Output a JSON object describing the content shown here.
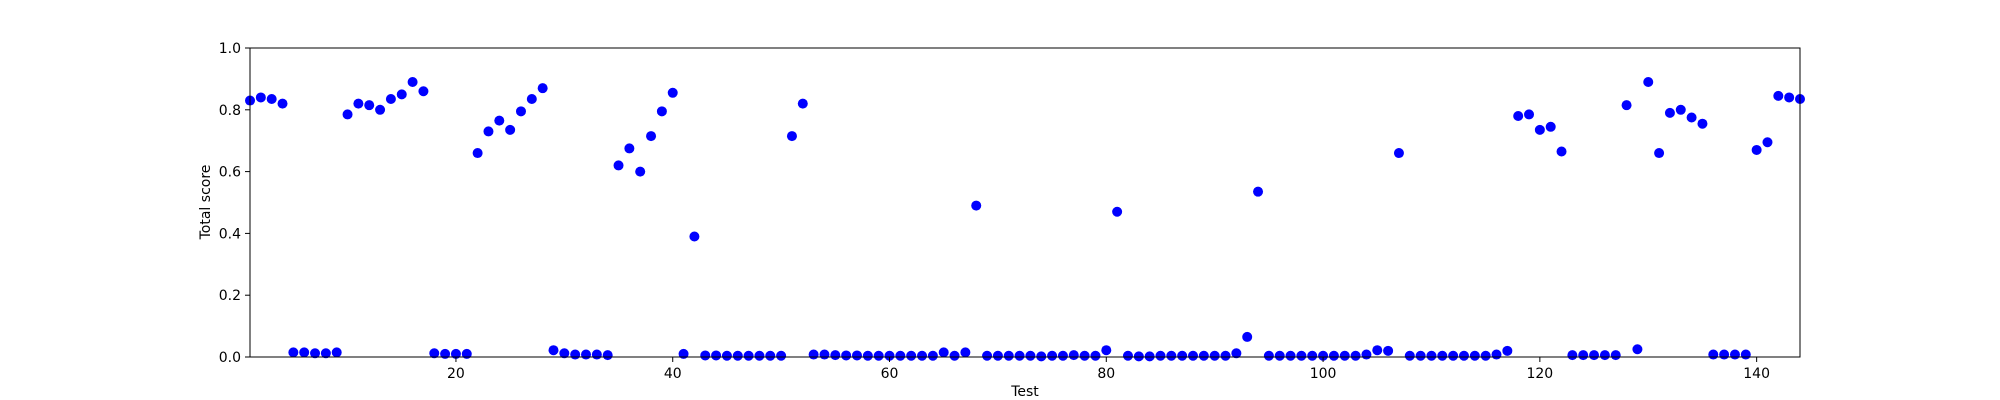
{
  "chart_data": {
    "type": "scatter",
    "title": "",
    "xlabel": "Test",
    "ylabel": "Total score",
    "xlim": [
      1,
      144
    ],
    "ylim": [
      0.0,
      1.0
    ],
    "x_ticks": [
      20,
      40,
      60,
      80,
      100,
      120,
      140
    ],
    "y_ticks": [
      0.0,
      0.2,
      0.4,
      0.6,
      0.8,
      1.0
    ],
    "x_tick_labels": [
      "20",
      "40",
      "60",
      "80",
      "100",
      "120",
      "140"
    ],
    "y_tick_labels": [
      "0.0",
      "0.2",
      "0.4",
      "0.6",
      "0.8",
      "1.0"
    ],
    "grid": false,
    "marker_color": "#0000ff",
    "series": [
      {
        "x": [
          1,
          2,
          3,
          4,
          5,
          6,
          7,
          8,
          9,
          10,
          11,
          12,
          13,
          14,
          15,
          16,
          17,
          18,
          19,
          20,
          21,
          22,
          23,
          24,
          25,
          26,
          27,
          28,
          29,
          30,
          31,
          32,
          33,
          34,
          35,
          36,
          37,
          38,
          39,
          40,
          41,
          42,
          43,
          44,
          45,
          46,
          47,
          48,
          49,
          50,
          51,
          52,
          53,
          54,
          55,
          56,
          57,
          58,
          59,
          60,
          61,
          62,
          63,
          64,
          65,
          66,
          67,
          68,
          69,
          70,
          71,
          72,
          73,
          74,
          75,
          76,
          77,
          78,
          79,
          80,
          81,
          82,
          83,
          84,
          85,
          86,
          87,
          88,
          89,
          90,
          91,
          92,
          93,
          94,
          95,
          96,
          97,
          98,
          99,
          100,
          101,
          102,
          103,
          104,
          105,
          106,
          107,
          108,
          109,
          110,
          111,
          112,
          113,
          114,
          115,
          116,
          117,
          118,
          119,
          120,
          121,
          122,
          123,
          124,
          125,
          126,
          127,
          128,
          129,
          130,
          131,
          132,
          133,
          134,
          135,
          136,
          137,
          138,
          139,
          140,
          141,
          142,
          143,
          144
        ],
        "y": [
          0.83,
          0.84,
          0.835,
          0.82,
          0.015,
          0.015,
          0.012,
          0.012,
          0.015,
          0.785,
          0.82,
          0.815,
          0.8,
          0.835,
          0.85,
          0.89,
          0.86,
          0.012,
          0.01,
          0.01,
          0.01,
          0.66,
          0.73,
          0.765,
          0.735,
          0.795,
          0.835,
          0.87,
          0.022,
          0.012,
          0.008,
          0.008,
          0.008,
          0.006,
          0.62,
          0.675,
          0.6,
          0.715,
          0.795,
          0.855,
          0.01,
          0.39,
          0.005,
          0.005,
          0.004,
          0.004,
          0.004,
          0.004,
          0.004,
          0.004,
          0.715,
          0.82,
          0.008,
          0.008,
          0.006,
          0.005,
          0.005,
          0.004,
          0.004,
          0.004,
          0.004,
          0.004,
          0.004,
          0.004,
          0.015,
          0.004,
          0.015,
          0.49,
          0.004,
          0.004,
          0.004,
          0.004,
          0.004,
          0.002,
          0.004,
          0.004,
          0.006,
          0.004,
          0.004,
          0.022,
          0.47,
          0.004,
          0.002,
          0.002,
          0.004,
          0.004,
          0.004,
          0.004,
          0.004,
          0.004,
          0.004,
          0.012,
          0.065,
          0.535,
          0.004,
          0.004,
          0.004,
          0.004,
          0.004,
          0.004,
          0.004,
          0.004,
          0.004,
          0.008,
          0.022,
          0.02,
          0.66,
          0.004,
          0.004,
          0.004,
          0.004,
          0.004,
          0.004,
          0.004,
          0.004,
          0.008,
          0.02,
          0.78,
          0.785,
          0.735,
          0.745,
          0.665,
          0.006,
          0.006,
          0.006,
          0.006,
          0.006,
          0.815,
          0.025,
          0.89,
          0.66,
          0.79,
          0.8,
          0.775,
          0.755,
          0.008,
          0.008,
          0.008,
          0.008,
          0.67,
          0.695,
          0.845,
          0.84,
          0.835
        ]
      }
    ]
  }
}
